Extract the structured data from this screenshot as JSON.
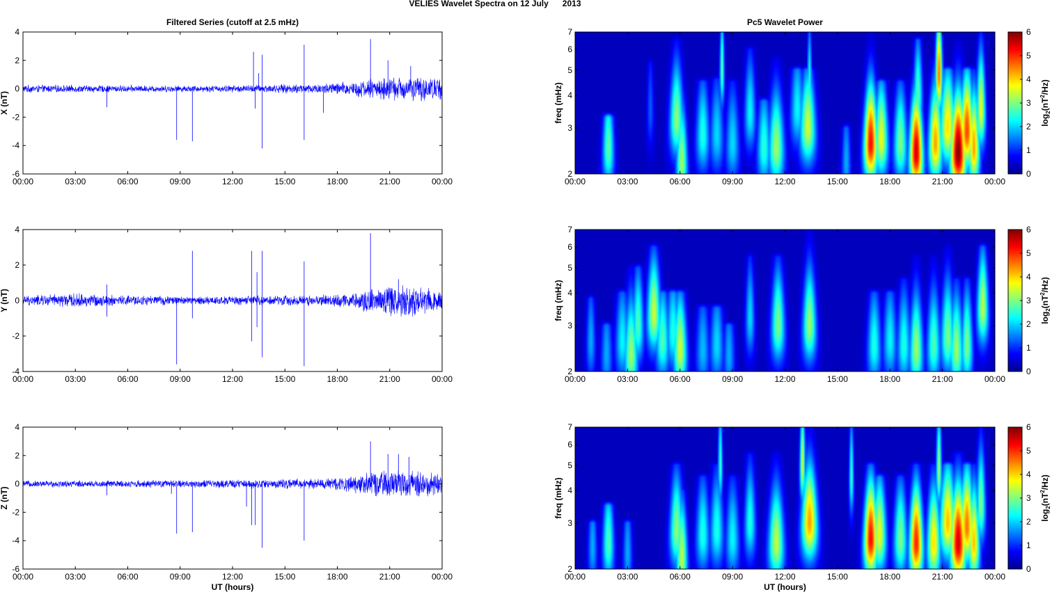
{
  "figure_title": "VELIES Wavelet Spectra on 12 July      2013",
  "colors": {
    "trace": "#0000ff",
    "background_low": "#00008f",
    "colormap": [
      "#00008f",
      "#0000ff",
      "#00ffff",
      "#ffff00",
      "#ff0000",
      "#800000"
    ]
  },
  "chart_data": [
    {
      "type": "line",
      "title": "Filtered Series (cutoff at 2.5 mHz)",
      "xlabel": "",
      "ylabel": "X (nT)",
      "xlim": [
        0,
        24
      ],
      "ylim": [
        -6,
        4
      ],
      "xticks": [
        "00:00",
        "03:00",
        "06:00",
        "09:00",
        "12:00",
        "15:00",
        "18:00",
        "21:00",
        "00:00"
      ],
      "yticks": [
        "-6",
        "-4",
        "-2",
        "0",
        "2",
        "4"
      ],
      "envelope": [
        [
          0,
          0.3
        ],
        [
          10,
          0.25
        ],
        [
          13,
          0.3
        ],
        [
          17,
          0.4
        ],
        [
          19,
          0.6
        ],
        [
          20,
          0.8
        ],
        [
          21,
          0.9
        ],
        [
          22,
          0.95
        ],
        [
          24,
          0.9
        ]
      ],
      "spikes": [
        [
          4.8,
          -1.3
        ],
        [
          8.8,
          -3.6
        ],
        [
          9.7,
          -3.7
        ],
        [
          13.2,
          2.6
        ],
        [
          13.3,
          -1.4
        ],
        [
          13.5,
          1.1
        ],
        [
          13.7,
          2.4
        ],
        [
          13.7,
          -4.2
        ],
        [
          16.1,
          3.1
        ],
        [
          16.1,
          -3.6
        ],
        [
          17.2,
          -1.7
        ],
        [
          19.9,
          3.5
        ],
        [
          20.9,
          2.0
        ],
        [
          22.2,
          1.6
        ]
      ]
    },
    {
      "type": "line",
      "title": "",
      "xlabel": "",
      "ylabel": "Y (nT)",
      "xlim": [
        0,
        24
      ],
      "ylim": [
        -4,
        4
      ],
      "xticks": [
        "00:00",
        "03:00",
        "06:00",
        "09:00",
        "12:00",
        "15:00",
        "18:00",
        "21:00",
        "00:00"
      ],
      "yticks": [
        "-4",
        "-2",
        "0",
        "2",
        "4"
      ],
      "envelope": [
        [
          0,
          0.3
        ],
        [
          3,
          0.45
        ],
        [
          5,
          0.35
        ],
        [
          10,
          0.25
        ],
        [
          13,
          0.3
        ],
        [
          17,
          0.35
        ],
        [
          19,
          0.5
        ],
        [
          20,
          0.8
        ],
        [
          21,
          1.0
        ],
        [
          22,
          1.1
        ],
        [
          24,
          0.7
        ]
      ],
      "spikes": [
        [
          4.8,
          0.9
        ],
        [
          4.8,
          -0.9
        ],
        [
          8.8,
          -3.6
        ],
        [
          9.7,
          2.8
        ],
        [
          9.7,
          -1.0
        ],
        [
          13.1,
          2.8
        ],
        [
          13.1,
          -2.3
        ],
        [
          13.4,
          1.6
        ],
        [
          13.4,
          -1.5
        ],
        [
          13.7,
          2.8
        ],
        [
          13.7,
          -3.2
        ],
        [
          16.1,
          2.2
        ],
        [
          16.1,
          -3.7
        ],
        [
          19.9,
          3.8
        ],
        [
          21.5,
          1.2
        ]
      ]
    },
    {
      "type": "line",
      "title": "",
      "xlabel": "UT (hours)",
      "ylabel": "Z (nT)",
      "xlim": [
        0,
        24
      ],
      "ylim": [
        -6,
        4
      ],
      "xticks": [
        "00:00",
        "03:00",
        "06:00",
        "09:00",
        "12:00",
        "15:00",
        "18:00",
        "21:00",
        "00:00"
      ],
      "yticks": [
        "-6",
        "-4",
        "-2",
        "0",
        "2",
        "4"
      ],
      "envelope": [
        [
          0,
          0.25
        ],
        [
          10,
          0.3
        ],
        [
          13,
          0.35
        ],
        [
          17,
          0.4
        ],
        [
          19,
          0.7
        ],
        [
          20,
          0.9
        ],
        [
          21,
          1.0
        ],
        [
          22,
          1.1
        ],
        [
          24,
          0.8
        ]
      ],
      "spikes": [
        [
          4.8,
          -0.8
        ],
        [
          8.5,
          -0.7
        ],
        [
          8.8,
          -3.5
        ],
        [
          9.7,
          -3.4
        ],
        [
          12.8,
          -1.6
        ],
        [
          13.1,
          -2.9
        ],
        [
          13.3,
          -2.9
        ],
        [
          13.7,
          -4.5
        ],
        [
          16.1,
          -4.0
        ],
        [
          19.9,
          3.0
        ],
        [
          20.9,
          2.1
        ],
        [
          21.5,
          2.1
        ],
        [
          22.1,
          1.9
        ]
      ]
    },
    {
      "type": "heatmap",
      "title": "Pc5 Wavelet Power",
      "xlabel": "",
      "ylabel": "freq (mHz)",
      "xlim": [
        0,
        24
      ],
      "ylim": [
        2,
        7
      ],
      "yscale": "log",
      "xticks": [
        "00:00",
        "03:00",
        "06:00",
        "09:00",
        "12:00",
        "15:00",
        "18:00",
        "21:00",
        "00:00"
      ],
      "yticks": [
        "2",
        "3",
        "4",
        "5",
        "6",
        "7"
      ],
      "colorbar_label": "log",
      "colorbar_ticks": [
        "0",
        "1",
        "2",
        "3",
        "4",
        "5",
        "6"
      ],
      "clim": [
        0,
        6
      ],
      "blobs": [
        [
          1.9,
          2.5,
          0.25,
          3.3,
          2.6
        ],
        [
          4.3,
          3.5,
          0.15,
          5.3,
          1.0
        ],
        [
          5.8,
          3.2,
          0.3,
          6.5,
          2.9
        ],
        [
          6.1,
          2.2,
          0.25,
          4.1,
          3.0
        ],
        [
          7.3,
          2.8,
          0.3,
          4.5,
          2.2
        ],
        [
          8.1,
          2.8,
          0.3,
          4.6,
          1.8
        ],
        [
          8.4,
          5.0,
          0.1,
          7.0,
          2.6
        ],
        [
          9.0,
          2.6,
          0.3,
          4.5,
          1.8
        ],
        [
          10.0,
          3.4,
          0.25,
          6.0,
          2.0
        ],
        [
          10.8,
          2.5,
          0.3,
          3.8,
          2.3
        ],
        [
          11.5,
          2.5,
          0.35,
          5.5,
          3.0
        ],
        [
          12.7,
          3.5,
          0.3,
          5.0,
          2.0
        ],
        [
          13.3,
          3.0,
          0.35,
          5.0,
          3.3
        ],
        [
          13.4,
          4.5,
          0.1,
          7.0,
          2.2
        ],
        [
          15.5,
          2.2,
          0.2,
          3.0,
          1.5
        ],
        [
          16.9,
          2.6,
          0.3,
          7.0,
          5.2
        ],
        [
          17.5,
          2.7,
          0.3,
          4.5,
          3.5
        ],
        [
          18.6,
          2.6,
          0.3,
          4.5,
          2.8
        ],
        [
          19.5,
          2.4,
          0.3,
          5.0,
          5.5
        ],
        [
          19.6,
          4.0,
          0.2,
          6.5,
          2.5
        ],
        [
          20.6,
          2.6,
          0.3,
          5.5,
          4.2
        ],
        [
          20.8,
          4.8,
          0.15,
          7.0,
          4.5
        ],
        [
          21.3,
          3.0,
          0.35,
          5.0,
          3.8
        ],
        [
          21.9,
          2.4,
          0.35,
          6.5,
          6.0
        ],
        [
          22.4,
          2.9,
          0.3,
          5.0,
          4.8
        ],
        [
          22.8,
          2.5,
          0.25,
          5.0,
          4.2
        ],
        [
          23.2,
          3.5,
          0.2,
          7.0,
          3.5
        ]
      ]
    },
    {
      "type": "heatmap",
      "title": "",
      "xlabel": "",
      "ylabel": "freq (mHz)",
      "xlim": [
        0,
        24
      ],
      "ylim": [
        2,
        7
      ],
      "yscale": "log",
      "xticks": [
        "00:00",
        "03:00",
        "06:00",
        "09:00",
        "12:00",
        "15:00",
        "18:00",
        "21:00",
        "00:00"
      ],
      "yticks": [
        "2",
        "3",
        "4",
        "5",
        "6",
        "7"
      ],
      "colorbar_label": "log",
      "colorbar_ticks": [
        "0",
        "1",
        "2",
        "3",
        "4",
        "5",
        "6"
      ],
      "clim": [
        0,
        6
      ],
      "blobs": [
        [
          0.9,
          2.6,
          0.2,
          3.8,
          1.5
        ],
        [
          1.8,
          2.3,
          0.25,
          3.0,
          1.5
        ],
        [
          2.7,
          2.6,
          0.3,
          4.0,
          2.0
        ],
        [
          3.2,
          2.3,
          0.3,
          5.0,
          3.0
        ],
        [
          3.6,
          3.0,
          0.25,
          5.0,
          2.5
        ],
        [
          4.5,
          3.3,
          0.3,
          6.0,
          3.3
        ],
        [
          5.0,
          2.6,
          0.3,
          4.0,
          2.5
        ],
        [
          5.6,
          2.8,
          0.3,
          4.0,
          2.2
        ],
        [
          6.0,
          2.4,
          0.3,
          4.0,
          3.3
        ],
        [
          7.3,
          2.4,
          0.3,
          3.5,
          1.6
        ],
        [
          8.1,
          2.5,
          0.3,
          3.5,
          1.8
        ],
        [
          8.8,
          2.3,
          0.25,
          3.0,
          1.5
        ],
        [
          10.0,
          3.2,
          0.2,
          5.5,
          1.8
        ],
        [
          11.6,
          3.0,
          0.3,
          5.5,
          2.8
        ],
        [
          13.4,
          3.0,
          0.3,
          7.0,
          3.0
        ],
        [
          17.1,
          2.5,
          0.3,
          4.0,
          2.2
        ],
        [
          18.0,
          2.6,
          0.3,
          4.0,
          2.0
        ],
        [
          18.8,
          2.5,
          0.3,
          4.5,
          2.2
        ],
        [
          19.5,
          2.4,
          0.3,
          5.5,
          3.0
        ],
        [
          20.5,
          2.5,
          0.3,
          5.5,
          2.5
        ],
        [
          21.3,
          2.7,
          0.3,
          6.0,
          2.8
        ],
        [
          21.8,
          2.4,
          0.3,
          4.5,
          3.0
        ],
        [
          22.4,
          2.5,
          0.25,
          4.5,
          2.8
        ],
        [
          23.3,
          3.5,
          0.25,
          6.0,
          3.2
        ]
      ]
    },
    {
      "type": "heatmap",
      "title": "",
      "xlabel": "UT (hours)",
      "ylabel": "freq (mHz)",
      "xlim": [
        0,
        24
      ],
      "ylim": [
        2,
        7
      ],
      "yscale": "log",
      "xticks": [
        "00:00",
        "03:00",
        "06:00",
        "09:00",
        "12:00",
        "15:00",
        "18:00",
        "21:00",
        "00:00"
      ],
      "yticks": [
        "2",
        "3",
        "4",
        "5",
        "6",
        "7"
      ],
      "colorbar_label": "log",
      "colorbar_ticks": [
        "0",
        "1",
        "2",
        "3",
        "4",
        "5",
        "6"
      ],
      "clim": [
        0,
        6
      ],
      "blobs": [
        [
          1.0,
          2.4,
          0.2,
          3.0,
          1.5
        ],
        [
          1.9,
          2.5,
          0.25,
          3.5,
          2.5
        ],
        [
          3.0,
          2.3,
          0.2,
          3.0,
          1.5
        ],
        [
          5.8,
          2.8,
          0.3,
          5.0,
          2.9
        ],
        [
          6.1,
          2.2,
          0.25,
          4.0,
          3.2
        ],
        [
          7.3,
          2.7,
          0.3,
          4.5,
          2.2
        ],
        [
          8.1,
          2.8,
          0.3,
          5.0,
          2.2
        ],
        [
          8.3,
          5.0,
          0.1,
          7.0,
          2.4
        ],
        [
          9.0,
          2.6,
          0.3,
          4.5,
          2.0
        ],
        [
          10.0,
          3.0,
          0.25,
          5.5,
          2.2
        ],
        [
          11.5,
          2.5,
          0.35,
          5.5,
          3.2
        ],
        [
          13.0,
          5.0,
          0.12,
          7.0,
          3.2
        ],
        [
          13.4,
          3.0,
          0.35,
          7.0,
          4.2
        ],
        [
          15.8,
          4.5,
          0.1,
          7.0,
          2.4
        ],
        [
          16.9,
          2.6,
          0.3,
          5.0,
          5.2
        ],
        [
          17.4,
          2.7,
          0.3,
          4.5,
          3.5
        ],
        [
          18.6,
          2.6,
          0.3,
          4.5,
          2.8
        ],
        [
          19.5,
          2.5,
          0.3,
          5.0,
          5.0
        ],
        [
          20.5,
          2.5,
          0.3,
          5.0,
          3.8
        ],
        [
          20.8,
          4.8,
          0.12,
          7.0,
          3.0
        ],
        [
          21.3,
          3.0,
          0.35,
          5.0,
          4.0
        ],
        [
          21.9,
          2.5,
          0.35,
          5.5,
          5.5
        ],
        [
          22.4,
          2.9,
          0.3,
          5.0,
          4.5
        ],
        [
          22.8,
          2.5,
          0.25,
          5.0,
          4.0
        ],
        [
          23.2,
          3.5,
          0.2,
          7.0,
          2.8
        ]
      ]
    }
  ]
}
